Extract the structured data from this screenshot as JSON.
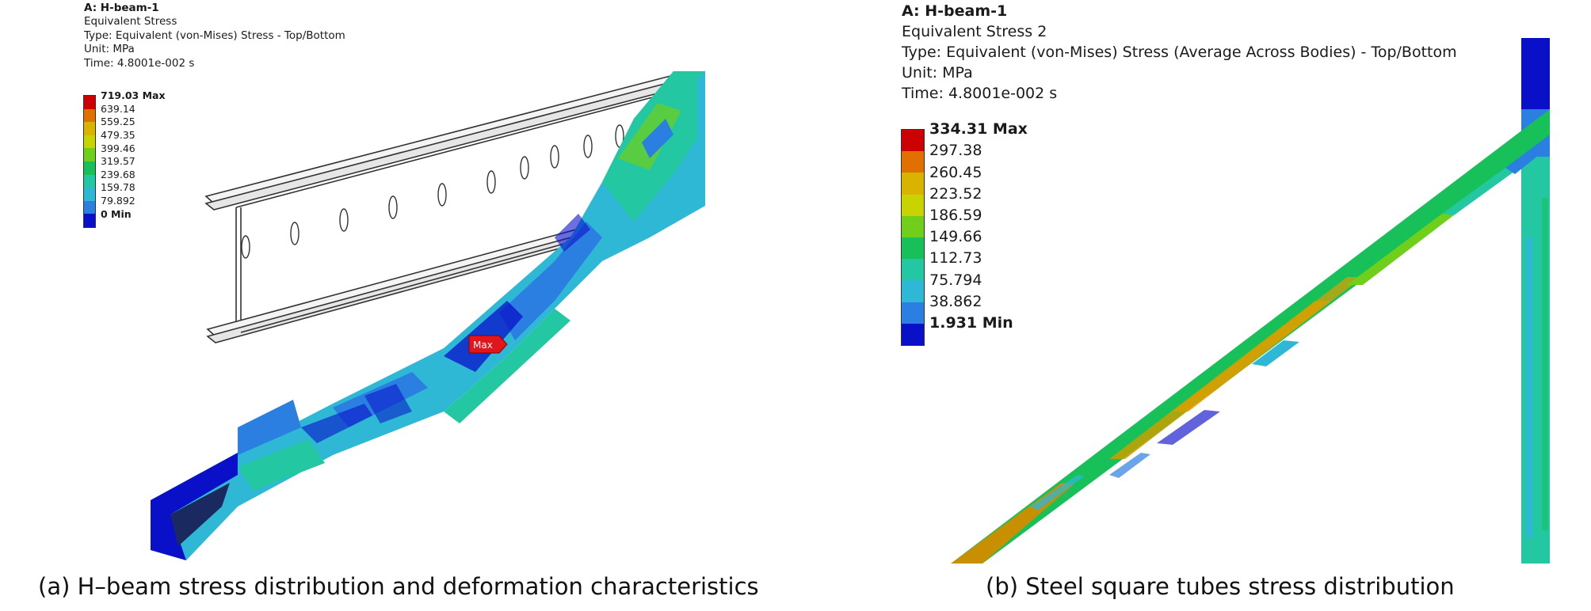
{
  "panel_a": {
    "header": {
      "title": "A: H-beam-1",
      "result": "Equivalent Stress",
      "type": "Type: Equivalent (von-Mises) Stress - Top/Bottom",
      "unit": "Unit: MPa",
      "time": "Time: 4.8001e-002 s"
    },
    "legend": [
      "719.03 Max",
      "639.14",
      "559.25",
      "479.35",
      "399.46",
      "319.57",
      "239.68",
      "159.78",
      "79.892",
      "0 Min"
    ],
    "max_marker": "Max",
    "caption": "(a) H–beam stress distribution and deformation characteristics"
  },
  "panel_b": {
    "header": {
      "title": "A: H-beam-1",
      "result": "Equivalent Stress 2",
      "type": "Type: Equivalent (von-Mises) Stress (Average Across Bodies) - Top/Bottom",
      "unit": "Unit: MPa",
      "time": "Time: 4.8001e-002 s"
    },
    "legend": [
      "334.31 Max",
      "297.38",
      "260.45",
      "223.52",
      "186.59",
      "149.66",
      "112.73",
      "75.794",
      "38.862",
      "1.931 Min"
    ],
    "caption": "(b) Steel square tubes stress distribution"
  },
  "colors": {
    "contour_scale": [
      "#cc0000",
      "#e07000",
      "#d8b400",
      "#c8d400",
      "#6fcf1a",
      "#18c05a",
      "#23c8a2",
      "#2eb8d6",
      "#2b7fe0",
      "#0a10c8"
    ]
  }
}
